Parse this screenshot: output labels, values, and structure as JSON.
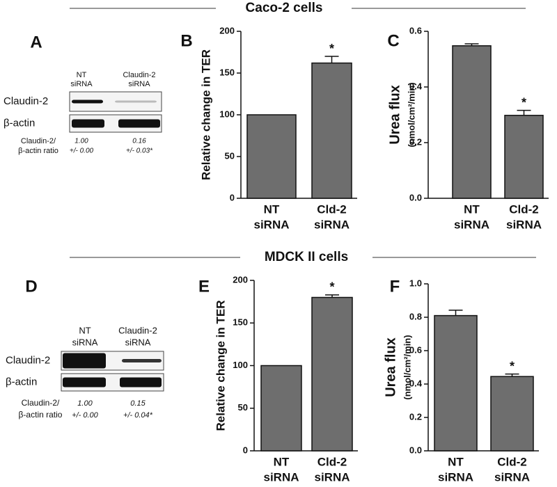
{
  "sections": [
    {
      "title": "Caco-2 cells"
    },
    {
      "title": "MDCK II cells"
    }
  ],
  "blots": [
    {
      "panel": "A",
      "lanes": [
        [
          "NT",
          "siRNA"
        ],
        [
          "Claudin-2",
          "siRNA"
        ]
      ],
      "rows": [
        "Claudin-2",
        "β-actin"
      ],
      "ratio_label": [
        "Claudin-2/",
        "β-actin ratio"
      ],
      "ratios": [
        [
          "1.00",
          "+/- 0.00"
        ],
        [
          "0.16",
          "+/- 0.03*"
        ]
      ]
    },
    {
      "panel": "D",
      "lanes": [
        [
          "NT",
          "siRNA"
        ],
        [
          "Claudin-2",
          "siRNA"
        ]
      ],
      "rows": [
        "Claudin-2",
        "β-actin"
      ],
      "ratio_label": [
        "Claudin-2/",
        "β-actin ratio"
      ],
      "ratios": [
        [
          "1.00",
          "+/- 0.00"
        ],
        [
          "0.15",
          "+/- 0.04*"
        ]
      ]
    }
  ],
  "chart_data": [
    {
      "type": "bar",
      "panel": "B",
      "ylabel": "Relative change in TER",
      "categories": [
        [
          "NT",
          "siRNA"
        ],
        [
          "Cld-2",
          "siRNA"
        ]
      ],
      "values": [
        100,
        162
      ],
      "errors": [
        0,
        8
      ],
      "significance": [
        null,
        "*"
      ],
      "color": "#6e6e6e",
      "ylim": [
        0,
        200
      ],
      "yticks": [
        0,
        50,
        100,
        150,
        200
      ]
    },
    {
      "type": "bar",
      "panel": "C",
      "ylabel": "Urea flux",
      "ylabel_unit": "(nmol/cm²/min)",
      "categories": [
        [
          "NT",
          "siRNA"
        ],
        [
          "Cld-2",
          "siRNA"
        ]
      ],
      "values": [
        0.548,
        0.298
      ],
      "errors": [
        0.007,
        0.018
      ],
      "significance": [
        null,
        "*"
      ],
      "color": "#6e6e6e",
      "ylim": [
        0,
        0.6
      ],
      "yticks": [
        {
          "value": 0,
          "label": "0.0"
        },
        0.2,
        0.4,
        0.6
      ]
    },
    {
      "type": "bar",
      "panel": "E",
      "ylabel": "Relative change in TER",
      "categories": [
        [
          "NT",
          "siRNA"
        ],
        [
          "Cld-2",
          "siRNA"
        ]
      ],
      "values": [
        100,
        180
      ],
      "errors": [
        0,
        3
      ],
      "significance": [
        null,
        "*"
      ],
      "color": "#6e6e6e",
      "ylim": [
        0,
        200
      ],
      "yticks": [
        0,
        50,
        100,
        150,
        200
      ]
    },
    {
      "type": "bar",
      "panel": "F",
      "ylabel": "Urea flux",
      "ylabel_unit": "(nmol/cm²/min)",
      "categories": [
        [
          "NT",
          "siRNA"
        ],
        [
          "Cld-2",
          "siRNA"
        ]
      ],
      "values": [
        0.81,
        0.445
      ],
      "errors": [
        0.032,
        0.015
      ],
      "significance": [
        null,
        "*"
      ],
      "color": "#6e6e6e",
      "ylim": [
        0,
        1.0
      ],
      "yticks": [
        {
          "value": 0,
          "label": "0.0"
        },
        0.2,
        0.4,
        0.6,
        0.8,
        {
          "value": 1,
          "label": "1.0"
        }
      ]
    }
  ]
}
